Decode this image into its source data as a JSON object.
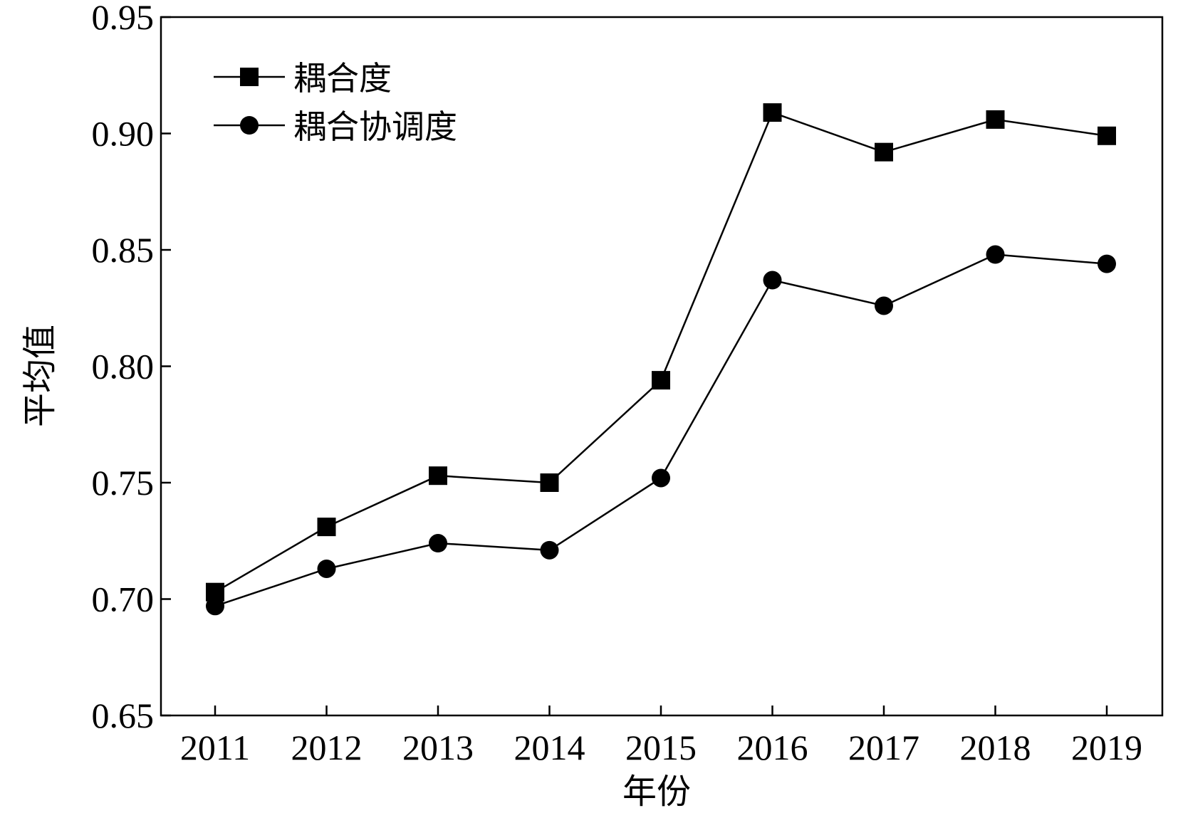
{
  "chart_data": {
    "type": "line",
    "title": "",
    "xlabel": "年份",
    "ylabel": "平均值",
    "categories": [
      "2011",
      "2012",
      "2013",
      "2014",
      "2015",
      "2016",
      "2017",
      "2018",
      "2019"
    ],
    "ylim": [
      0.65,
      0.95
    ],
    "yticks": [
      "0.65",
      "0.70",
      "0.75",
      "0.80",
      "0.85",
      "0.90",
      "0.95"
    ],
    "grid": false,
    "legend_position": "top-left",
    "series": [
      {
        "name": "耦合度",
        "marker": "square",
        "color": "#000000",
        "values": [
          0.703,
          0.731,
          0.753,
          0.75,
          0.794,
          0.909,
          0.892,
          0.906,
          0.899
        ]
      },
      {
        "name": "耦合协调度",
        "marker": "circle",
        "color": "#000000",
        "values": [
          0.697,
          0.713,
          0.724,
          0.721,
          0.752,
          0.837,
          0.826,
          0.848,
          0.844
        ]
      }
    ]
  }
}
